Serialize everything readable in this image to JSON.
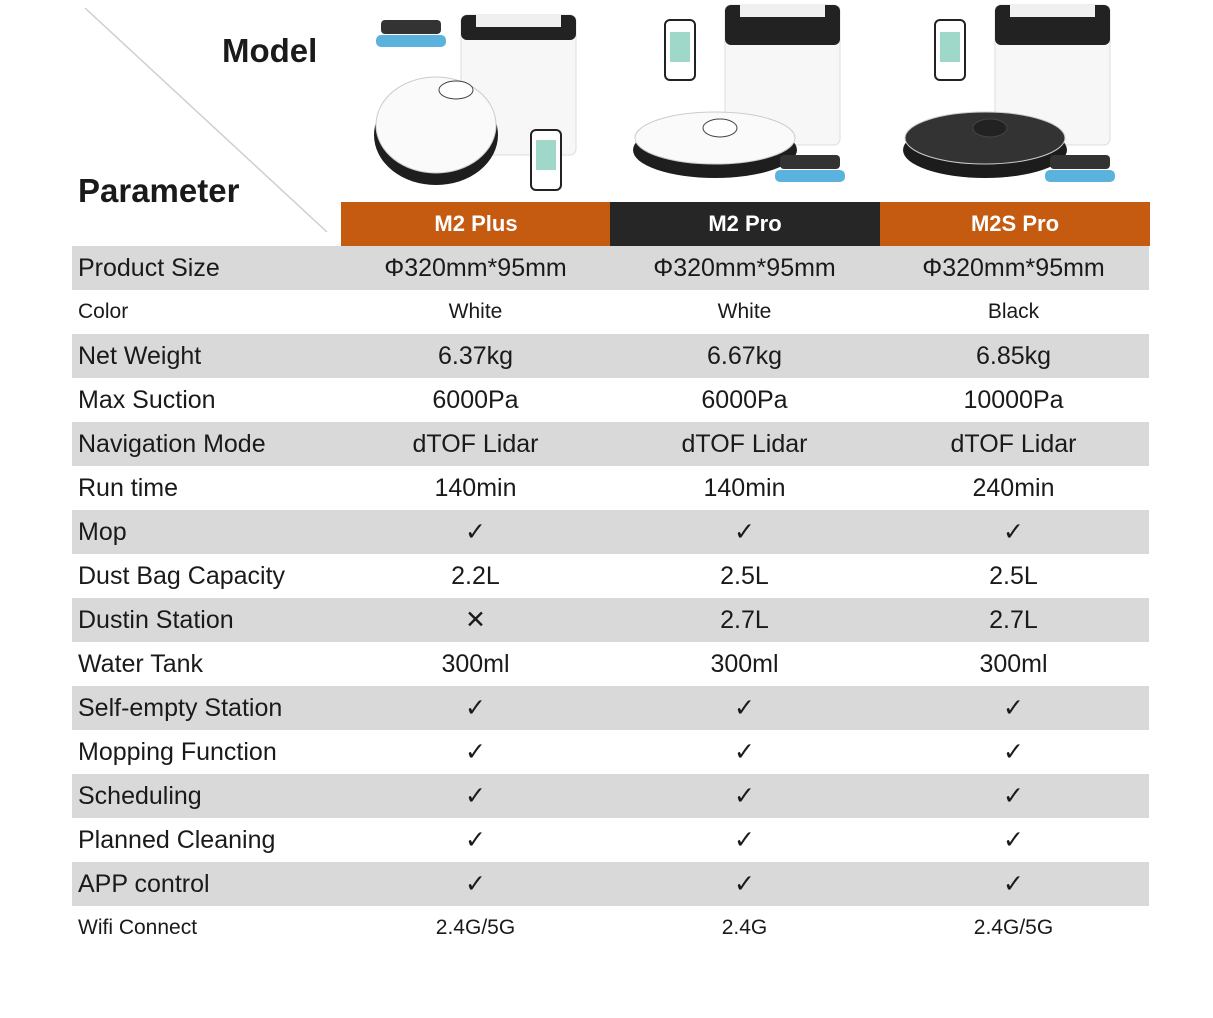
{
  "header": {
    "model_label": "Model",
    "parameter_label": "Parameter"
  },
  "colors": {
    "orange": "#c55a11",
    "dark": "#262626",
    "row_gray": "#d9d9d9"
  },
  "products": [
    {
      "name": "M2 Plus",
      "header_color": "#c55a11",
      "robot_color": "white"
    },
    {
      "name": "M2 Pro",
      "header_color": "#262626",
      "robot_color": "white"
    },
    {
      "name": "M2S Pro",
      "header_color": "#c55a11",
      "robot_color": "black"
    }
  ],
  "rows": [
    {
      "label": "Product Size",
      "values": [
        "Φ320mm*95mm",
        "Φ320mm*95mm",
        "Φ320mm*95mm"
      ]
    },
    {
      "label": "Color",
      "values": [
        "White",
        "White",
        "Black"
      ]
    },
    {
      "label": "Net Weight",
      "values": [
        "6.37kg",
        "6.67kg",
        "6.85kg"
      ]
    },
    {
      "label": "Max Suction",
      "values": [
        "6000Pa",
        "6000Pa",
        "10000Pa"
      ]
    },
    {
      "label": "Navigation Mode",
      "values": [
        "dTOF Lidar",
        "dTOF Lidar",
        "dTOF Lidar"
      ]
    },
    {
      "label": "Run time",
      "values": [
        "140min",
        "140min",
        "240min"
      ]
    },
    {
      "label": "Mop",
      "values": [
        "✓",
        "✓",
        "✓"
      ]
    },
    {
      "label": "Dust Bag Capacity",
      "values": [
        "2.2L",
        "2.5L",
        "2.5L"
      ]
    },
    {
      "label": "Dustin Station",
      "values": [
        "✕",
        "2.7L",
        "2.7L"
      ]
    },
    {
      "label": "Water Tank",
      "values": [
        "300ml",
        "300ml",
        "300ml"
      ]
    },
    {
      "label": "Self-empty Station",
      "values": [
        "✓",
        "✓",
        "✓"
      ]
    },
    {
      "label": "Mopping Function",
      "values": [
        "✓",
        "✓",
        "✓"
      ]
    },
    {
      "label": "Scheduling",
      "values": [
        "✓",
        "✓",
        "✓"
      ]
    },
    {
      "label": "Planned Cleaning",
      "values": [
        "✓",
        "✓",
        "✓"
      ]
    },
    {
      "label": "APP control",
      "values": [
        "✓",
        "✓",
        "✓"
      ]
    },
    {
      "label": "Wifi Connect",
      "values": [
        "2.4G/5G",
        "2.4G",
        "2.4G/5G"
      ]
    }
  ]
}
